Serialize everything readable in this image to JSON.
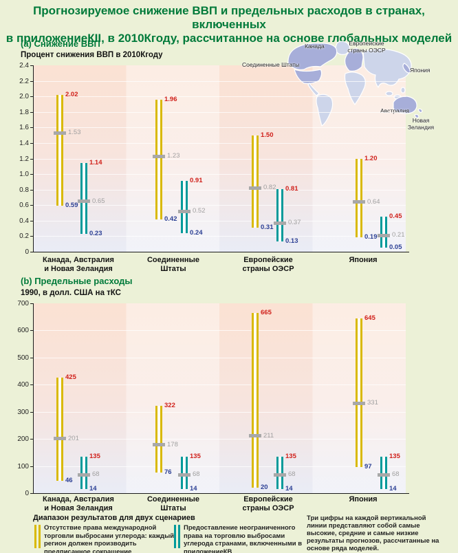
{
  "page": {
    "title_line1": "Прогнозируемое снижение ВВП и предельных расходов в странах, включенных",
    "title_line2": "в приложениеКII, в 2010Кгоду, рассчитанное на основе глобальных моделей"
  },
  "panels": [
    {
      "label": "(a) Снижение ВВП",
      "subtitle": "Процент снижения ВВП в 2010Кгоду",
      "yticks": [
        "0",
        "0.2",
        "0.4",
        "0.6",
        "0.8",
        "1.0",
        "1.2",
        "1.4",
        "1.6",
        "1.8",
        "2.0",
        "2.2",
        "2.4"
      ],
      "decimals": 2
    },
    {
      "label": "(b) Предельные расходы",
      "subtitle": "1990, в долл. США на тКС",
      "yticks": [
        "0",
        "100",
        "200",
        "300",
        "400",
        "500",
        "600",
        "700"
      ],
      "decimals": 0
    }
  ],
  "categories": [
    {
      "line1": "Канада, Австралия",
      "line2": "и Новая Зеландия"
    },
    {
      "line1": "Соединенные",
      "line2": "Штаты"
    },
    {
      "line1": "Европейские",
      "line2": "страны ОЭСР"
    },
    {
      "line1": "Япония",
      "line2": ""
    }
  ],
  "map_labels": [
    {
      "id": "canada",
      "text": "Канада"
    },
    {
      "id": "oecd-europe",
      "text": "Европейские страны ОЭСР"
    },
    {
      "id": "japan",
      "text": "Япония"
    },
    {
      "id": "united-states",
      "text": "Соединенные Штаты"
    },
    {
      "id": "australia",
      "text": "Австралия"
    },
    {
      "id": "new-zealand",
      "text": "Новая Зеландия"
    }
  ],
  "legend": {
    "heading": "Диапазон результатов для двух сценариев",
    "items": [
      {
        "color": "#d9b900",
        "text": "Отсутствие права международной торговли выбросами углерода: каждый регион должен производить предписанное сокращение"
      },
      {
        "color": "#009a9a",
        "text": "Предоставление неограниченного права на торговлю выбросами углерода странами, включенными в приложениеКВ"
      }
    ]
  },
  "note": "Три цифры на каждой вертикальной линии представляют собой самые высокие, средние и самые низкие результаты прогнозов, рассчитанные на основе ряда моделей.",
  "colors": {
    "no_trading_bar": "#d9b900",
    "trading_bar": "#009a9a",
    "high_label": "#d0201a",
    "low_label": "#2b3f94",
    "mid_label": "#a0a0a0",
    "mid_marker": "#a8a8a8",
    "title_green": "#007a3a",
    "page_bg": "#ecf1d7",
    "map_annex": "#a7aed9",
    "map_other": "#cdd5ea"
  },
  "chart_data": [
    {
      "type": "bar",
      "title": "(a) Снижение ВВП",
      "ylabel": "Процент снижения ВВП в 2010Кгоду",
      "ylim": [
        0,
        2.4
      ],
      "grid": true,
      "categories": [
        "Канада, Австралия и Новая Зеландия",
        "Соединенные Штаты",
        "Европейские страны ОЭСР",
        "Япония"
      ],
      "series": [
        {
          "name": "Отсутствие права международной торговли выбросами углерода",
          "low": [
            0.59,
            0.42,
            0.31,
            0.19
          ],
          "mid": [
            1.53,
            1.23,
            0.82,
            0.64
          ],
          "high": [
            2.02,
            1.96,
            1.5,
            1.2
          ]
        },
        {
          "name": "Предоставление неограниченного права на торговлю выбросами углерода",
          "low": [
            0.23,
            0.24,
            0.13,
            0.05
          ],
          "mid": [
            0.65,
            0.52,
            0.37,
            0.21
          ],
          "high": [
            1.14,
            0.91,
            0.81,
            0.45
          ]
        }
      ]
    },
    {
      "type": "bar",
      "title": "(b) Предельные расходы",
      "ylabel": "1990, в долл. США на тКС",
      "ylim": [
        0,
        700
      ],
      "grid": true,
      "categories": [
        "Канада, Австралия и Новая Зеландия",
        "Соединенные Штаты",
        "Европейские страны ОЭСР",
        "Япония"
      ],
      "series": [
        {
          "name": "Отсутствие права международной торговли выбросами углерода",
          "low": [
            46,
            76,
            20,
            97
          ],
          "mid": [
            201,
            178,
            211,
            331
          ],
          "high": [
            425,
            322,
            665,
            645
          ]
        },
        {
          "name": "Предоставление неограниченного права на торговлю выбросами углерода",
          "low": [
            14,
            14,
            14,
            14
          ],
          "mid": [
            68,
            68,
            68,
            68
          ],
          "high": [
            135,
            135,
            135,
            135
          ]
        }
      ]
    }
  ]
}
